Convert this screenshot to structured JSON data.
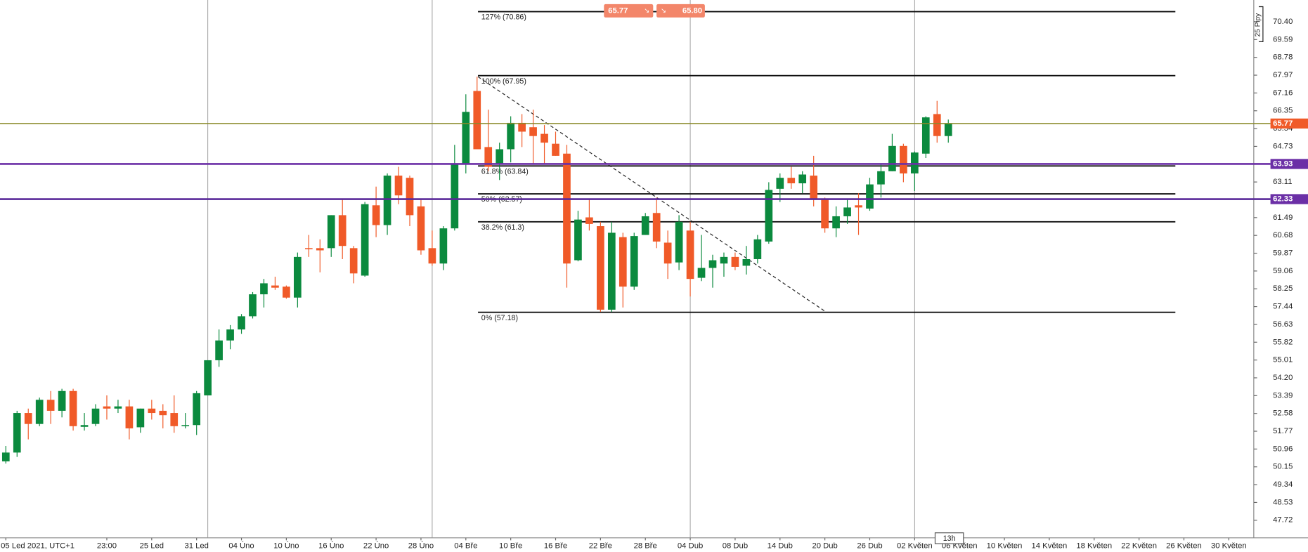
{
  "chart_data": {
    "type": "candlestick",
    "categories": [
      "05 Led 2021, UTC+1",
      null,
      null,
      null,
      null,
      null,
      null,
      null,
      null,
      "23:00",
      null,
      null,
      null,
      "25 Led",
      null,
      null,
      null,
      "31 Led",
      null,
      null,
      null,
      "04 Úno",
      null,
      null,
      null,
      "10 Úno",
      null,
      null,
      null,
      "16 Úno",
      null,
      null,
      null,
      "22 Úno",
      null,
      null,
      null,
      "28 Úno",
      null,
      null,
      null,
      "04 Bře",
      null,
      null,
      null,
      "10 Bře",
      null,
      null,
      null,
      "16 Bře",
      null,
      null,
      null,
      "22 Bře",
      null,
      null,
      null,
      "28 Bře",
      null,
      null,
      null,
      "04 Dub",
      null,
      null,
      null,
      "08 Dub",
      null,
      null,
      null,
      "14 Dub",
      null,
      null,
      null,
      "20 Dub",
      null,
      null,
      null,
      "26 Dub",
      null,
      null,
      null,
      "02 Květen",
      null,
      null,
      null,
      "06 Květen",
      null,
      null,
      null,
      "10 Květen",
      null,
      null,
      null,
      "14 Květen",
      null,
      null,
      null,
      "18 Květen",
      null,
      null,
      null,
      "22 Květen",
      null,
      null,
      null,
      "26 Květen",
      null,
      null,
      null,
      "30 Květen",
      null,
      null
    ],
    "open": [
      50.4,
      50.8,
      52.6,
      52.1,
      53.2,
      52.7,
      53.6,
      51.97,
      52.1,
      52.9,
      52.8,
      52.9,
      51.95,
      52.8,
      52.7,
      52.6,
      52.0,
      52.05,
      53.4,
      55.0,
      55.9,
      56.4,
      57.0,
      58.0,
      58.4,
      58.35,
      57.85,
      60.1,
      60.1,
      60.1,
      61.6,
      60.1,
      58.85,
      62.05,
      61.15,
      63.4,
      63.3,
      62.0,
      60.1,
      59.4,
      61.0,
      63.9,
      67.25,
      64.7,
      63.9,
      64.6,
      65.8,
      65.6,
      65.3,
      64.85,
      64.4,
      59.55,
      61.5,
      61.1,
      57.3,
      60.6,
      58.35,
      60.7,
      61.7,
      60.35,
      59.45,
      60.9,
      58.75,
      59.2,
      59.4,
      59.7,
      59.3,
      59.6,
      60.4,
      62.8,
      63.3,
      63.05,
      63.4,
      62.35,
      61.0,
      61.55,
      62.05,
      61.9,
      63.0,
      63.6,
      64.75,
      63.5,
      64.4,
      66.2,
      65.2,
      null,
      null,
      null,
      null,
      null,
      null,
      null,
      null,
      null,
      null,
      null,
      null,
      null,
      null,
      null,
      null,
      null,
      null,
      null,
      null,
      null,
      null,
      null,
      null,
      null,
      null,
      null
    ],
    "high": [
      51.1,
      52.7,
      52.8,
      53.3,
      53.6,
      53.7,
      53.7,
      52.6,
      53.0,
      53.4,
      53.2,
      53.2,
      52.8,
      53.2,
      53.0,
      53.4,
      52.6,
      53.6,
      55.0,
      56.4,
      56.6,
      57.1,
      58.1,
      58.7,
      58.8,
      58.4,
      59.9,
      60.7,
      60.5,
      61.6,
      62.3,
      60.2,
      62.2,
      62.9,
      63.5,
      63.8,
      63.4,
      62.3,
      60.9,
      61.1,
      64.8,
      67.1,
      67.9,
      66.4,
      64.9,
      66.1,
      66.2,
      66.4,
      65.7,
      65.4,
      64.8,
      61.8,
      62.3,
      61.3,
      61.3,
      60.8,
      60.8,
      61.7,
      62.4,
      60.9,
      61.6,
      61.3,
      60.7,
      59.8,
      59.9,
      59.9,
      60.2,
      60.7,
      63.1,
      63.5,
      63.8,
      63.6,
      64.3,
      62.4,
      62.0,
      62.3,
      62.6,
      63.3,
      63.9,
      65.3,
      64.85,
      64.5,
      66.1,
      66.8,
      65.95,
      null,
      null,
      null,
      null,
      null,
      null,
      null,
      null,
      null,
      null,
      null,
      null,
      null,
      null,
      null,
      null,
      null,
      null,
      null,
      null,
      null,
      null,
      null,
      null,
      null,
      null,
      null
    ],
    "low": [
      50.3,
      50.6,
      51.4,
      52.0,
      52.1,
      52.4,
      51.8,
      51.8,
      52.0,
      52.3,
      52.6,
      51.4,
      51.7,
      52.3,
      51.9,
      51.7,
      51.9,
      51.6,
      53.4,
      54.7,
      55.5,
      56.2,
      56.9,
      57.4,
      58.2,
      57.8,
      57.4,
      59.7,
      59.0,
      59.7,
      59.6,
      58.5,
      58.8,
      60.6,
      60.7,
      62.1,
      61.1,
      59.8,
      59.3,
      59.1,
      60.9,
      63.5,
      64.6,
      63.6,
      63.2,
      64.0,
      64.7,
      63.9,
      63.9,
      64.3,
      58.3,
      59.5,
      60.9,
      57.2,
      57.2,
      57.4,
      58.2,
      60.7,
      60.1,
      58.7,
      59.1,
      57.9,
      58.6,
      58.3,
      58.8,
      59.1,
      58.9,
      59.4,
      60.3,
      62.2,
      62.8,
      62.6,
      62.0,
      60.8,
      60.6,
      61.2,
      60.7,
      61.8,
      62.4,
      63.6,
      63.1,
      62.7,
      64.2,
      64.9,
      64.9,
      null,
      null,
      null,
      null,
      null,
      null,
      null,
      null,
      null,
      null,
      null,
      null,
      null,
      null,
      null,
      null,
      null,
      null,
      null,
      null,
      null,
      null,
      null,
      null,
      null,
      null,
      null
    ],
    "close": [
      50.8,
      52.6,
      52.1,
      53.2,
      52.7,
      53.6,
      52.0,
      52.05,
      52.8,
      52.8,
      52.9,
      51.9,
      52.8,
      52.6,
      52.5,
      52.0,
      52.05,
      53.5,
      55.0,
      55.9,
      56.4,
      57.0,
      58.0,
      58.5,
      58.3,
      57.85,
      59.7,
      60.05,
      60.0,
      61.6,
      60.2,
      58.95,
      62.1,
      61.15,
      63.4,
      62.5,
      61.6,
      60.0,
      59.4,
      61.0,
      63.9,
      66.3,
      64.6,
      63.8,
      64.6,
      65.8,
      65.4,
      65.2,
      64.9,
      64.3,
      59.4,
      61.4,
      61.2,
      57.3,
      60.8,
      58.35,
      60.65,
      61.55,
      60.4,
      59.4,
      61.3,
      58.7,
      59.2,
      59.55,
      59.7,
      59.25,
      59.6,
      60.5,
      62.75,
      63.3,
      63.05,
      63.45,
      62.35,
      61.0,
      61.55,
      61.95,
      61.95,
      63.0,
      63.6,
      64.75,
      63.5,
      64.45,
      66.05,
      65.2,
      65.77,
      null,
      null,
      null,
      null,
      null,
      null,
      null,
      null,
      null,
      null,
      null,
      null,
      null,
      null,
      null,
      null,
      null,
      null,
      null,
      null,
      null,
      null,
      null,
      null,
      null,
      null,
      null
    ],
    "colors": {
      "up": "#0b8a3e",
      "down": "#f05a28"
    },
    "ylim": [
      46.92,
      71.39
    ],
    "yticks": [
      {
        "value": 70.4,
        "label": "70.40"
      },
      69.59,
      68.78,
      67.97,
      67.16,
      66.35,
      65.54,
      64.73,
      63.11,
      61.49,
      60.68,
      59.87,
      59.06,
      58.25,
      57.44,
      56.63,
      55.82,
      55.01,
      {
        "value": 54.2,
        "label": "54.20"
      },
      53.39,
      52.58,
      51.77,
      50.96,
      50.15,
      49.34,
      48.53,
      47.72
    ],
    "fib_levels": [
      {
        "label": "127% (70.86)",
        "value": 70.86
      },
      {
        "label": "100% (67.95)",
        "value": 67.95
      },
      {
        "label": "61.8% (63.84)",
        "value": 63.84
      },
      {
        "label": "50% (62.57)",
        "value": 62.57
      },
      {
        "label": "38.2% (61.3)",
        "value": 61.3
      },
      {
        "label": "0% (57.18)",
        "value": 57.18
      }
    ],
    "price_lines": [
      {
        "value": 65.77,
        "color": "#8a8a2a",
        "label_color": "#f05a28"
      },
      {
        "value": 63.93,
        "color": "#6b2fa6",
        "label_color": "#6b2fa6"
      },
      {
        "value": 62.33,
        "color": "#5a2a9a",
        "label_color": "#6b2fa6"
      }
    ]
  },
  "trade_panel": {
    "sell_price": "65.77",
    "buy_price": "65.80"
  },
  "range_label": "25 Pipy",
  "cursor_label": "13h"
}
